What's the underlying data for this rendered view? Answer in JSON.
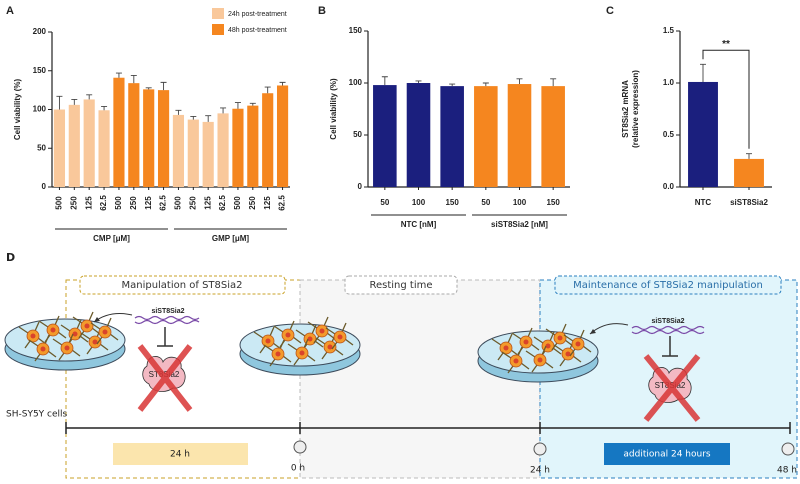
{
  "chart_data": [
    {
      "type": "bar",
      "panel": "A",
      "ylabel": "Cell viability (%)",
      "categories": [
        "500",
        "250",
        "125",
        "62.5",
        "500",
        "250",
        "125",
        "62.5",
        "500",
        "250",
        "125",
        "62.5",
        "500",
        "250",
        "125",
        "62.5"
      ],
      "group_labels": [
        "CMP [μM]",
        "GMP [μM]"
      ],
      "series": [
        {
          "name": "24h post-treatment",
          "color": "#f9c89b",
          "values": [
            100,
            106,
            113,
            99,
            null,
            null,
            null,
            null,
            93,
            87,
            84,
            95,
            null,
            null,
            null,
            null
          ],
          "errors": [
            17,
            7,
            6,
            5,
            null,
            null,
            null,
            null,
            6,
            4,
            8,
            7,
            null,
            null,
            null,
            null
          ]
        },
        {
          "name": "48h post-treatment",
          "color": "#f5861f",
          "values": [
            null,
            null,
            null,
            null,
            141,
            134,
            126,
            125,
            null,
            null,
            null,
            null,
            101,
            105,
            121,
            131
          ],
          "errors": [
            null,
            null,
            null,
            null,
            6,
            10,
            2,
            10,
            null,
            null,
            null,
            null,
            8,
            3,
            8,
            4
          ]
        }
      ],
      "ylim": [
        0,
        200
      ],
      "yticks": [
        0,
        50,
        100,
        150,
        200
      ],
      "legend": "top"
    },
    {
      "type": "bar",
      "panel": "B",
      "ylabel": "Cell viability (%)",
      "categories": [
        "50",
        "100",
        "150",
        "50",
        "100",
        "150"
      ],
      "group_labels": [
        "NTC [nM]",
        "siST8Sia2 [nM]"
      ],
      "values": [
        98,
        100,
        97,
        97,
        99,
        97
      ],
      "errors": [
        8,
        2,
        2,
        3,
        5,
        7
      ],
      "colors": [
        "#1b1f7e",
        "#1b1f7e",
        "#1b1f7e",
        "#f5861f",
        "#f5861f",
        "#f5861f"
      ],
      "ylim": [
        0,
        150
      ],
      "yticks": [
        0,
        50,
        100,
        150
      ]
    },
    {
      "type": "bar",
      "panel": "C",
      "ylabel": [
        "ST8Sia2 mRNA",
        "(relative expression)"
      ],
      "categories": [
        "NTC",
        "siST8Sia2"
      ],
      "values": [
        1.01,
        0.27
      ],
      "errors": [
        0.17,
        0.05
      ],
      "colors": [
        "#1b1f7e",
        "#f5861f"
      ],
      "ylim": [
        0,
        1.5
      ],
      "yticks": [
        {
          "value": 0,
          "label": "0.0"
        },
        {
          "value": 0.5,
          "label": "0.5"
        },
        {
          "value": 1,
          "label": "1.0"
        },
        {
          "value": 1.5,
          "label": "1.5"
        }
      ],
      "annotation": "**"
    }
  ],
  "diagram": {
    "panel": "D",
    "phases": [
      "Manipulation of ST8Sia2",
      "Resting time",
      "Maintenance of ST8Sia2 manipulation"
    ],
    "sirna_labels": [
      "siST8Sia2",
      "siST8Sia2"
    ],
    "target_labels": [
      "ST8Sia2",
      "ST8Sia2"
    ],
    "cell_line": "SH-SY5Y cells",
    "durations": [
      "24 h",
      "additional 24 hours"
    ],
    "timepoints": [
      "0 h",
      "24 h",
      "48 h"
    ]
  }
}
